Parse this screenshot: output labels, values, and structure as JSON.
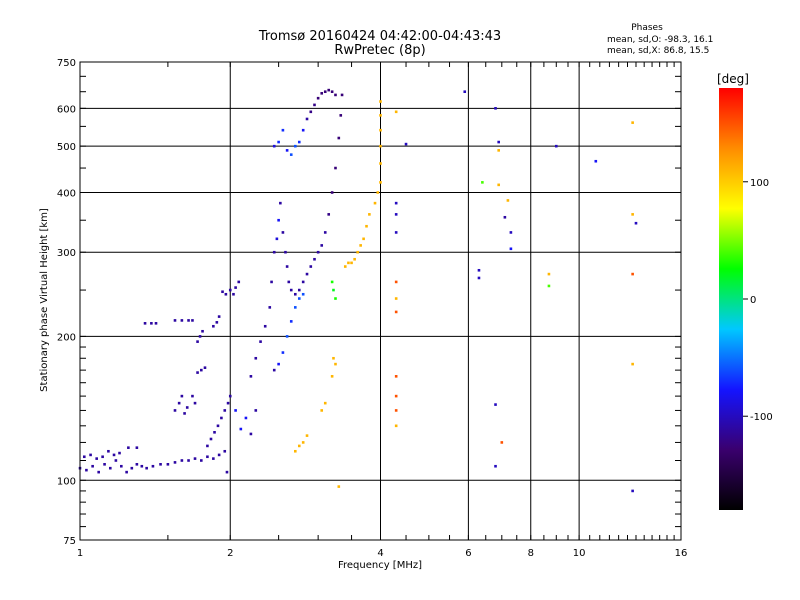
{
  "chart_data": {
    "type": "scatter",
    "title": "Tromsø 20160424 04:42:00-04:43:43",
    "subtitle": "RwPretec (8p)",
    "xlabel": "Frequency [MHz]",
    "ylabel": "Stationary phase Virtual Height [km]",
    "x_scale": "log2",
    "y_scale": "log",
    "xlim": [
      1,
      16
    ],
    "ylim": [
      75,
      750
    ],
    "x_ticks": [
      1,
      2,
      4,
      6,
      8,
      10,
      16
    ],
    "y_ticks": [
      75,
      100,
      200,
      300,
      400,
      500,
      600,
      750
    ],
    "grid": true,
    "stats": {
      "title": "Phases",
      "line1": "mean, sd,O: -98.3, 16.1",
      "line2": "mean, sd,X:  86.8, 15.5"
    },
    "colorbar": {
      "label": "[deg]",
      "ticks": [
        100,
        0,
        -100
      ],
      "range": [
        -180,
        180
      ],
      "colors": [
        "#000000",
        "#3a006e",
        "#1414ff",
        "#00c8ff",
        "#00ff00",
        "#ffff00",
        "#ff8c00",
        "#ff0000"
      ]
    },
    "series": [
      {
        "points": [
          [
            1.0,
            106,
            -110
          ],
          [
            1.03,
            105,
            -110
          ],
          [
            1.06,
            107,
            -110
          ],
          [
            1.09,
            104,
            -110
          ],
          [
            1.12,
            108,
            -110
          ],
          [
            1.15,
            106,
            -110
          ],
          [
            1.18,
            110,
            -110
          ],
          [
            1.21,
            107,
            -110
          ],
          [
            1.24,
            104,
            -110
          ],
          [
            1.27,
            106,
            -110
          ],
          [
            1.3,
            108,
            -110
          ],
          [
            1.33,
            107,
            -110
          ],
          [
            1.36,
            106,
            -110
          ],
          [
            1.4,
            107,
            -110
          ],
          [
            1.45,
            108,
            -110
          ],
          [
            1.5,
            108,
            -110
          ],
          [
            1.55,
            109,
            -110
          ],
          [
            1.6,
            110,
            -110
          ],
          [
            1.65,
            110,
            -110
          ],
          [
            1.7,
            111,
            -110
          ],
          [
            1.75,
            110,
            -110
          ],
          [
            1.8,
            112,
            -110
          ],
          [
            1.85,
            111,
            -110
          ],
          [
            1.9,
            113,
            -110
          ],
          [
            1.95,
            115,
            -110
          ],
          [
            1.97,
            104,
            -110
          ],
          [
            1.02,
            112,
            -110
          ],
          [
            1.05,
            113,
            -110
          ],
          [
            1.08,
            111,
            -110
          ],
          [
            1.11,
            112,
            -110
          ],
          [
            1.14,
            115,
            -110
          ],
          [
            1.17,
            113,
            -110
          ],
          [
            1.2,
            114,
            -110
          ],
          [
            1.25,
            117,
            -110
          ],
          [
            1.3,
            117,
            -110
          ],
          [
            1.35,
            213,
            -110
          ],
          [
            1.39,
            213,
            -110
          ],
          [
            1.42,
            213,
            -110
          ],
          [
            1.55,
            216,
            -110
          ],
          [
            1.6,
            216,
            -110
          ],
          [
            1.65,
            216,
            -110
          ],
          [
            1.68,
            216,
            -110
          ],
          [
            1.55,
            140,
            -110
          ],
          [
            1.58,
            145,
            -110
          ],
          [
            1.6,
            150,
            -110
          ],
          [
            1.62,
            138,
            -110
          ],
          [
            1.64,
            142,
            -110
          ],
          [
            1.68,
            150,
            -110
          ],
          [
            1.7,
            145,
            -110
          ],
          [
            1.72,
            168,
            -110
          ],
          [
            1.75,
            170,
            -110
          ],
          [
            1.78,
            172,
            -110
          ],
          [
            1.72,
            195,
            -110
          ],
          [
            1.74,
            200,
            -110
          ],
          [
            1.76,
            205,
            -110
          ],
          [
            1.85,
            210,
            -110
          ],
          [
            1.88,
            214,
            -110
          ],
          [
            1.9,
            220,
            -110
          ],
          [
            1.93,
            248,
            -110
          ],
          [
            1.96,
            245,
            -110
          ],
          [
            2.0,
            250,
            -110
          ],
          [
            2.03,
            245,
            -110
          ],
          [
            2.05,
            253,
            -110
          ],
          [
            2.08,
            260,
            -110
          ],
          [
            1.8,
            118,
            -110
          ],
          [
            1.83,
            122,
            -110
          ],
          [
            1.86,
            126,
            -110
          ],
          [
            1.89,
            130,
            -110
          ],
          [
            1.92,
            135,
            -110
          ],
          [
            1.95,
            140,
            -110
          ],
          [
            1.98,
            145,
            -110
          ],
          [
            2.0,
            150,
            -110
          ],
          [
            2.05,
            140,
            -80
          ],
          [
            2.1,
            128,
            -80
          ],
          [
            2.15,
            135,
            -80
          ],
          [
            2.2,
            125,
            -110
          ],
          [
            2.25,
            140,
            -110
          ],
          [
            2.2,
            165,
            -110
          ],
          [
            2.25,
            180,
            -110
          ],
          [
            2.3,
            195,
            -110
          ],
          [
            2.35,
            210,
            -110
          ],
          [
            2.4,
            230,
            -110
          ],
          [
            2.42,
            260,
            -110
          ],
          [
            2.45,
            300,
            -110
          ],
          [
            2.48,
            320,
            -90
          ],
          [
            2.5,
            350,
            -80
          ],
          [
            2.52,
            380,
            -110
          ],
          [
            2.55,
            330,
            -110
          ],
          [
            2.58,
            300,
            -110
          ],
          [
            2.6,
            280,
            -110
          ],
          [
            2.62,
            260,
            -110
          ],
          [
            2.65,
            250,
            -110
          ],
          [
            2.7,
            245,
            -110
          ],
          [
            2.75,
            250,
            -110
          ],
          [
            2.8,
            260,
            -110
          ],
          [
            2.85,
            270,
            -110
          ],
          [
            2.9,
            280,
            -110
          ],
          [
            2.95,
            290,
            -110
          ],
          [
            3.0,
            300,
            -110
          ],
          [
            3.05,
            310,
            -110
          ],
          [
            3.1,
            330,
            -110
          ],
          [
            3.15,
            360,
            -120
          ],
          [
            3.2,
            400,
            -125
          ],
          [
            3.25,
            450,
            -125
          ],
          [
            3.3,
            520,
            -125
          ],
          [
            3.33,
            580,
            -125
          ],
          [
            3.35,
            640,
            -125
          ],
          [
            2.45,
            500,
            -90
          ],
          [
            2.5,
            510,
            -70
          ],
          [
            2.55,
            540,
            -70
          ],
          [
            2.6,
            490,
            -80
          ],
          [
            2.65,
            480,
            -60
          ],
          [
            2.7,
            500,
            -60
          ],
          [
            2.75,
            510,
            -70
          ],
          [
            2.8,
            540,
            -80
          ],
          [
            2.85,
            570,
            -110
          ],
          [
            2.9,
            590,
            -120
          ],
          [
            2.95,
            610,
            -120
          ],
          [
            3.0,
            630,
            -125
          ],
          [
            3.05,
            645,
            -125
          ],
          [
            3.1,
            650,
            -125
          ],
          [
            3.15,
            655,
            -125
          ],
          [
            3.2,
            650,
            -125
          ],
          [
            3.25,
            640,
            -125
          ],
          [
            2.7,
            230,
            -60
          ],
          [
            2.75,
            240,
            -60
          ],
          [
            2.8,
            245,
            -60
          ],
          [
            2.65,
            215,
            -70
          ],
          [
            2.6,
            200,
            -60
          ],
          [
            2.55,
            185,
            -70
          ],
          [
            2.5,
            175,
            -80
          ],
          [
            2.45,
            170,
            -110
          ],
          [
            3.2,
            260,
            30
          ],
          [
            3.22,
            250,
            20
          ],
          [
            3.25,
            240,
            30
          ],
          [
            3.4,
            280,
            110
          ],
          [
            3.45,
            285,
            110
          ],
          [
            3.5,
            285,
            110
          ],
          [
            3.55,
            290,
            110
          ],
          [
            3.6,
            300,
            110
          ],
          [
            3.65,
            310,
            110
          ],
          [
            3.7,
            320,
            110
          ],
          [
            3.75,
            340,
            110
          ],
          [
            3.8,
            360,
            110
          ],
          [
            3.9,
            380,
            110
          ],
          [
            3.95,
            400,
            110
          ],
          [
            4.0,
            420,
            110
          ],
          [
            4.0,
            460,
            110
          ],
          [
            4.0,
            500,
            110
          ],
          [
            4.0,
            540,
            110
          ],
          [
            4.0,
            580,
            110
          ],
          [
            4.0,
            620,
            110
          ],
          [
            3.2,
            165,
            110
          ],
          [
            3.25,
            175,
            110
          ],
          [
            3.22,
            180,
            110
          ],
          [
            3.1,
            145,
            110
          ],
          [
            3.05,
            140,
            110
          ],
          [
            2.8,
            120,
            110
          ],
          [
            2.75,
            118,
            110
          ],
          [
            2.7,
            115,
            110
          ],
          [
            2.85,
            124,
            110
          ],
          [
            3.3,
            97,
            110
          ],
          [
            4.3,
            380,
            -100
          ],
          [
            4.3,
            360,
            -100
          ],
          [
            4.3,
            330,
            -100
          ],
          [
            4.3,
            260,
            150
          ],
          [
            4.3,
            240,
            110
          ],
          [
            4.3,
            225,
            150
          ],
          [
            4.3,
            165,
            150
          ],
          [
            4.3,
            150,
            150
          ],
          [
            4.3,
            140,
            150
          ],
          [
            4.3,
            130,
            110
          ],
          [
            4.3,
            590,
            110
          ],
          [
            4.5,
            505,
            -100
          ],
          [
            5.9,
            650,
            -100
          ],
          [
            6.4,
            420,
            40
          ],
          [
            6.3,
            275,
            -100
          ],
          [
            6.3,
            265,
            -100
          ],
          [
            6.8,
            600,
            -100
          ],
          [
            6.9,
            510,
            -100
          ],
          [
            6.9,
            490,
            110
          ],
          [
            6.9,
            415,
            110
          ],
          [
            7.2,
            385,
            110
          ],
          [
            7.1,
            355,
            -110
          ],
          [
            7.3,
            305,
            -80
          ],
          [
            7.3,
            330,
            -100
          ],
          [
            6.8,
            144,
            -100
          ],
          [
            7.0,
            120,
            150
          ],
          [
            6.8,
            107,
            -100
          ],
          [
            8.7,
            270,
            110
          ],
          [
            8.7,
            255,
            40
          ],
          [
            9.0,
            500,
            -100
          ],
          [
            10.8,
            465,
            -80
          ],
          [
            12.8,
            560,
            110
          ],
          [
            12.8,
            360,
            110
          ],
          [
            12.8,
            270,
            150
          ],
          [
            12.8,
            175,
            110
          ],
          [
            12.8,
            95,
            -100
          ],
          [
            13.0,
            345,
            -100
          ]
        ]
      }
    ]
  }
}
